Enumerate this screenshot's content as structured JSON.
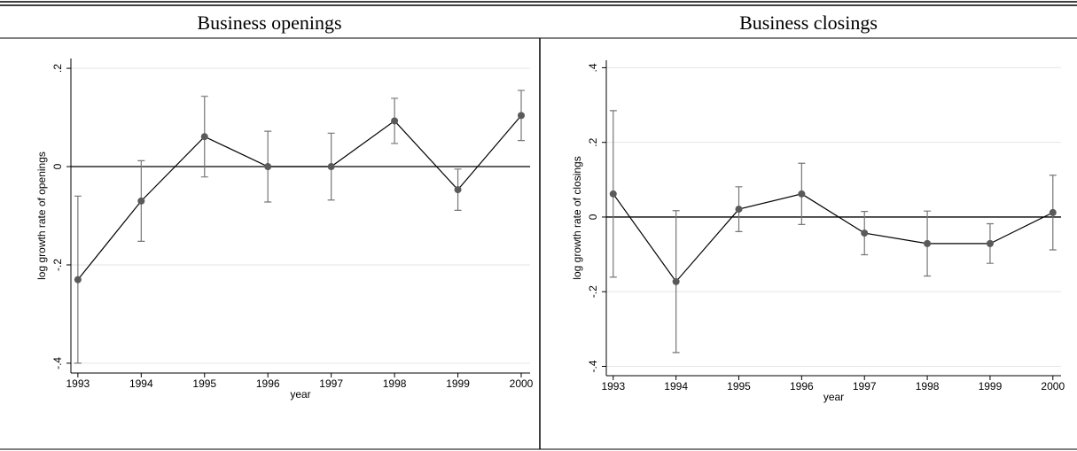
{
  "chart_data": [
    {
      "type": "line",
      "title": "Business openings",
      "xlabel": "year",
      "ylabel": "log growth rate of openings",
      "x": [
        1993,
        1994,
        1995,
        1996,
        1997,
        1998,
        1999,
        2000
      ],
      "values": [
        -0.23,
        -0.07,
        0.061,
        0,
        0,
        0.093,
        -0.047,
        0.104
      ],
      "errors": [
        0.17,
        0.082,
        0.082,
        0.072,
        0.068,
        0.046,
        0.042,
        0.051
      ],
      "xlim": [
        1992.89,
        2000.14
      ],
      "ylim": [
        -0.42,
        0.22
      ],
      "xticks": [
        1993,
        1994,
        1995,
        1996,
        1997,
        1998,
        1999,
        2000
      ],
      "yticks": [
        {
          "value": -0.4,
          "label": "-.4"
        },
        {
          "value": -0.2,
          "label": "-.2"
        },
        0,
        {
          "value": 0.2,
          "label": ".2"
        }
      ],
      "hline": 0,
      "grid": true,
      "color": "#5a5a5a"
    },
    {
      "type": "line",
      "title": "Business closings",
      "xlabel": "year",
      "ylabel": "log growth rate of closings",
      "x": [
        1993,
        1994,
        1995,
        1996,
        1997,
        1998,
        1999,
        2000
      ],
      "values": [
        0.062,
        -0.173,
        0.021,
        0.062,
        -0.043,
        -0.071,
        -0.071,
        0.012
      ],
      "errors": [
        0.223,
        0.19,
        0.06,
        0.082,
        0.058,
        0.087,
        0.053,
        0.1
      ],
      "xlim": [
        1992.89,
        2000.13
      ],
      "ylim": [
        -0.425,
        0.42
      ],
      "xticks": [
        1993,
        1994,
        1995,
        1996,
        1997,
        1998,
        1999,
        2000
      ],
      "yticks": [
        {
          "value": -0.4,
          "label": "-.4"
        },
        {
          "value": -0.2,
          "label": "-.2"
        },
        0,
        {
          "value": 0.2,
          "label": ".2"
        },
        {
          "value": 0.4,
          "label": ".4"
        }
      ],
      "hline": 0,
      "grid": true,
      "color": "#5a5a5a"
    }
  ]
}
